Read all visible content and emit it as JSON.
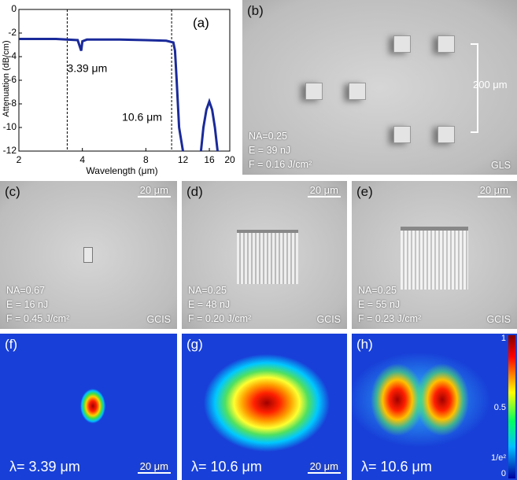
{
  "chart_data": {
    "type": "line",
    "panel_label": "(a)",
    "x_label": "Wavelength (μm)",
    "y_label": "Attenuation (dB/cm)",
    "x": [
      2,
      3,
      3.8,
      3.9,
      3.95,
      4.0,
      4.2,
      5,
      6,
      8,
      10,
      10.8,
      11,
      11.2,
      11.5,
      12,
      null,
      14.6,
      15,
      15.5,
      16,
      16.5,
      17,
      17.5
    ],
    "values": [
      -2.5,
      -2.5,
      -2.6,
      -3.2,
      -3.5,
      -2.7,
      -2.55,
      -2.55,
      -2.55,
      -2.6,
      -2.65,
      -2.8,
      -3.5,
      -6,
      -10,
      -12,
      null,
      -12,
      -10,
      -8.5,
      -7.8,
      -8.5,
      -10,
      -12
    ],
    "color": "#1a2a9a",
    "xscale": "log",
    "xlim": [
      2,
      20
    ],
    "xticks": [
      2,
      4,
      8,
      12,
      16,
      20
    ],
    "ylim": [
      -12,
      0
    ],
    "yticks": [
      0,
      -2,
      -4,
      -6,
      -8,
      -10,
      -12
    ],
    "annotations": [
      {
        "text": "3.39 μm",
        "x": 3.39
      },
      {
        "text": "10.6 μm",
        "x": 10.6
      }
    ]
  },
  "panels": {
    "b": {
      "label": "(b)",
      "lines": [
        "NA=0.25",
        "E = 39 nJ",
        "F = 0.16 J/cm²"
      ],
      "material": "GLS",
      "scale": "200 μm"
    },
    "c": {
      "label": "(c)",
      "lines": [
        "NA=0.67",
        "E = 16 nJ",
        "F = 0.45 J/cm²"
      ],
      "material": "GCIS",
      "scale": "20 μm"
    },
    "d": {
      "label": "(d)",
      "lines": [
        "NA=0.25",
        "E = 48 nJ",
        "F = 0.20 J/cm²"
      ],
      "material": "GCIS",
      "scale": "20 μm"
    },
    "e": {
      "label": "(e)",
      "lines": [
        "NA=0.25",
        "E = 55 nJ",
        "F = 0.23 J/cm²"
      ],
      "material": "GCIS",
      "scale": "20 μm"
    },
    "f": {
      "label": "(f)",
      "lambda": "λ= 3.39 μm",
      "scale": "20 μm"
    },
    "g": {
      "label": "(g)",
      "lambda": "λ= 10.6 μm",
      "scale": "20 μm"
    },
    "h": {
      "label": "(h)",
      "lambda": "λ= 10.6 μm",
      "colorbar": [
        "1",
        "0.5",
        "1/e²",
        "0"
      ]
    }
  }
}
